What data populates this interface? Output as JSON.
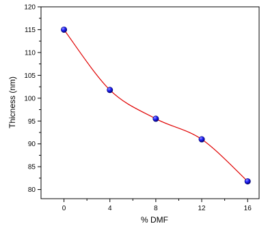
{
  "chart_data": {
    "type": "scatter",
    "xlabel": "% DMF",
    "ylabel": "Thicness (nm)",
    "xlim": [
      -2,
      17
    ],
    "ylim": [
      78,
      120
    ],
    "xticks": [
      0,
      4,
      8,
      12,
      16
    ],
    "yticks": [
      80,
      85,
      90,
      95,
      100,
      105,
      110,
      115,
      120
    ],
    "x_tick_labels": [
      "0",
      "4",
      "8",
      "12",
      "16"
    ],
    "y_tick_labels": [
      "80",
      "85",
      "90",
      "95",
      "100",
      "105",
      "110",
      "115",
      "120"
    ],
    "series": [
      {
        "x": [
          0,
          4,
          8,
          12,
          16
        ],
        "y": [
          115.0,
          101.8,
          95.5,
          91.0,
          81.8
        ],
        "marker_color": "#1010e0",
        "line_color": "#e00000",
        "line": "smooth-fit"
      }
    ],
    "grid": false,
    "legend": "none"
  }
}
